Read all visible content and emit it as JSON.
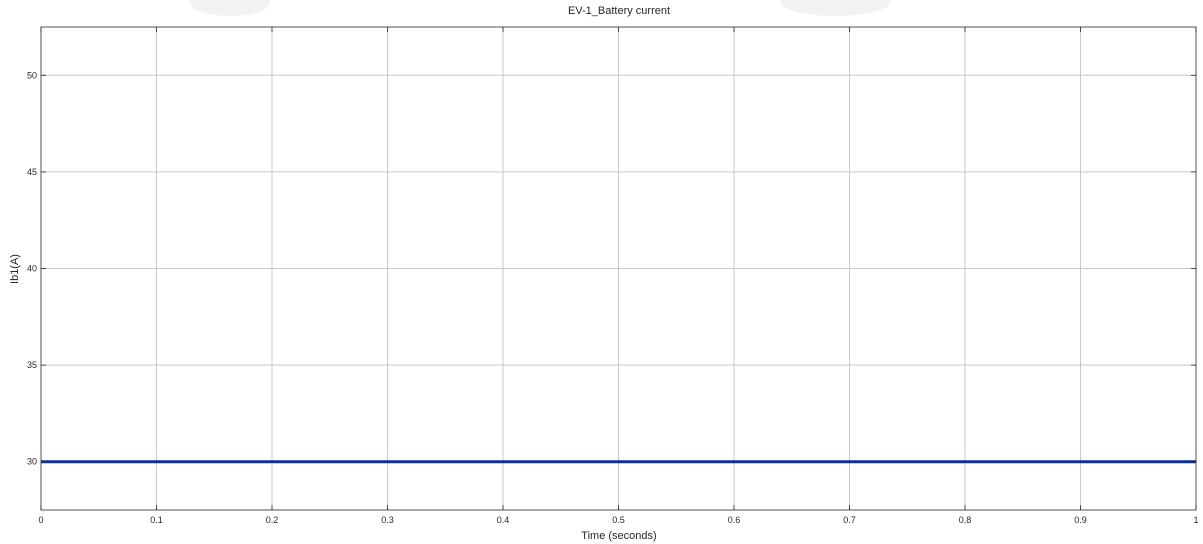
{
  "chart_data": {
    "type": "line",
    "title": "EV-1_Battery  current",
    "xlabel": "Time (seconds)",
    "ylabel": "Ib1(A)",
    "xlim": [
      0,
      1
    ],
    "ylim": [
      27.5,
      52.5
    ],
    "xticks": [
      0,
      0.1,
      0.2,
      0.3,
      0.4,
      0.5,
      0.6,
      0.7,
      0.8,
      0.9,
      1
    ],
    "xtick_labels": [
      "0",
      "0.1",
      "0.2",
      "0.3",
      "0.4",
      "0.5",
      "0.6",
      "0.7",
      "0.8",
      "0.9",
      "1"
    ],
    "yticks": [
      30,
      35,
      40,
      45,
      50
    ],
    "ytick_labels": [
      "30",
      "35",
      "40",
      "45",
      "50"
    ],
    "grid": true,
    "series": [
      {
        "x": [
          0,
          1
        ],
        "y": [
          30,
          30
        ],
        "color": "#0b2ea0"
      }
    ],
    "colors": {
      "grid": "#c8c8c8",
      "axes": "#262626",
      "background": "#ffffff"
    }
  }
}
